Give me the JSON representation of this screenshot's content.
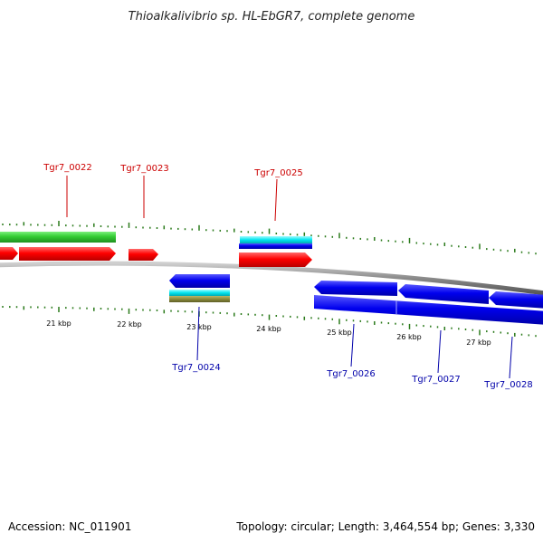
{
  "title": "Thioalkalivibrio sp. HL-EbGR7, complete genome",
  "footer": {
    "accession": "Accession: NC_011901",
    "summary": "Topology: circular; Length: 3,464,554 bp; Genes: 3,330"
  },
  "colors": {
    "forward_label": "#cc0000",
    "reverse_label": "#0000aa",
    "tick": "#2a7a1a",
    "backbone": "#777777",
    "gene_red": "#ff0000",
    "gene_green": "#33cc33",
    "gene_blue": "#0000ee",
    "gene_cyan": "#00e5ee",
    "gene_olive": "#8a8a3a"
  },
  "kbp_labels": [
    "21 kbp",
    "22 kbp",
    "23 kbp",
    "24 kbp",
    "25 kbp",
    "26 kbp",
    "27 kbp"
  ],
  "forward_genes": [
    "Tgr7_0022",
    "Tgr7_0023",
    "Tgr7_0025"
  ],
  "reverse_genes": [
    "Tgr7_0024",
    "Tgr7_0026",
    "Tgr7_0027",
    "Tgr7_0028"
  ]
}
